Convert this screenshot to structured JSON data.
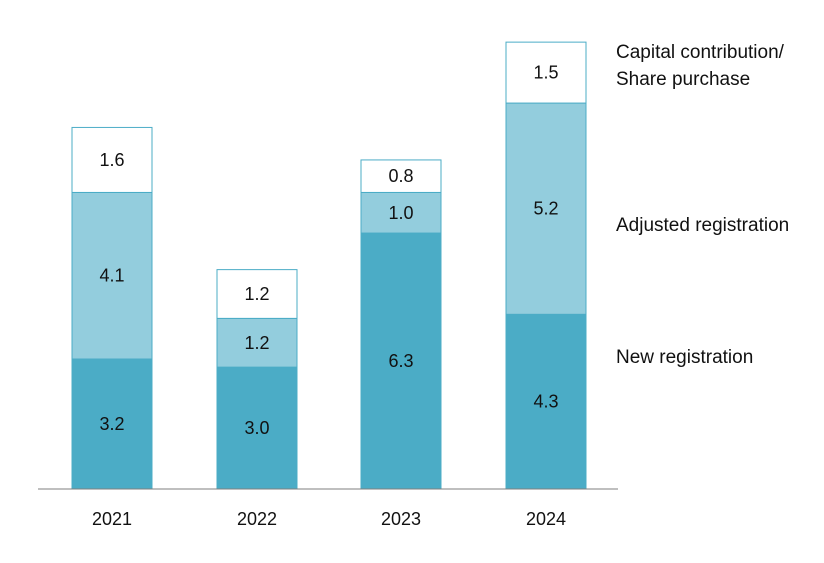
{
  "chart_data": {
    "type": "bar",
    "stacked": true,
    "title": "",
    "xlabel": "",
    "ylabel": "",
    "categories": [
      "2021",
      "2022",
      "2023",
      "2024"
    ],
    "series": [
      {
        "name": "New registration",
        "values": [
          3.2,
          3.0,
          6.3,
          4.3
        ],
        "labels": [
          "3.2",
          "3.0",
          "6.3",
          "4.3"
        ],
        "color": "#4BACC6"
      },
      {
        "name": "Adjusted registration",
        "values": [
          4.1,
          1.2,
          1.0,
          5.2
        ],
        "labels": [
          "4.1",
          "1.2",
          "1.0",
          "5.2"
        ],
        "color": "#93CDDD"
      },
      {
        "name": "Capital contribution/ Share purchase",
        "legend_lines": [
          "Capital contribution/",
          "Share purchase"
        ],
        "values": [
          1.6,
          1.2,
          0.8,
          1.5
        ],
        "labels": [
          "1.6",
          "1.2",
          "0.8",
          "1.5"
        ],
        "color": "#FFFFFF"
      }
    ],
    "ylim": [
      0,
      11.2
    ],
    "grid": false,
    "legend_position": "right",
    "colors": {
      "outline": "#4BACC6",
      "axis": "#7F7F7F",
      "text": "#111111"
    }
  }
}
